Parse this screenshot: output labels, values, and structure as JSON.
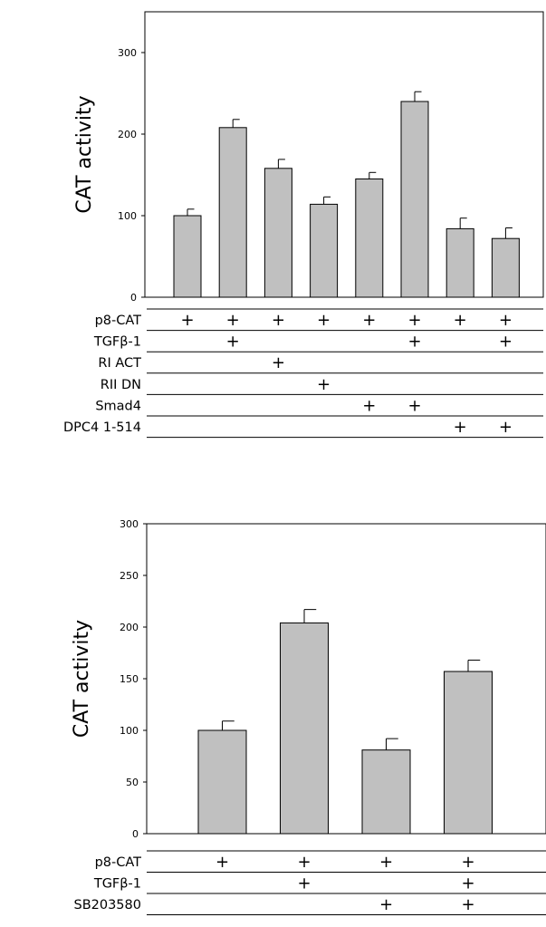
{
  "chart_data": [
    {
      "type": "bar",
      "ylabel": "CAT activity",
      "ylim": [
        0,
        350
      ],
      "yticks": [
        "0",
        "100",
        "200",
        "300"
      ],
      "values": [
        100,
        208,
        158,
        114,
        145,
        240,
        84,
        72
      ],
      "errors": [
        8,
        10,
        11,
        9,
        8,
        12,
        13,
        13
      ],
      "bar_color": "#c0c0c0",
      "table": {
        "rows": [
          {
            "label": "p8-CAT",
            "marks": [
              1,
              1,
              1,
              1,
              1,
              1,
              1,
              1
            ]
          },
          {
            "label": "TGFβ-1",
            "marks": [
              0,
              1,
              0,
              0,
              0,
              1,
              0,
              1
            ]
          },
          {
            "label": "RI ACT",
            "marks": [
              0,
              0,
              1,
              0,
              0,
              0,
              0,
              0
            ]
          },
          {
            "label": "RII DN",
            "marks": [
              0,
              0,
              0,
              1,
              0,
              0,
              0,
              0
            ]
          },
          {
            "label": "Smad4",
            "marks": [
              0,
              0,
              0,
              0,
              1,
              1,
              0,
              0
            ]
          },
          {
            "label": "DPC4 1-514",
            "marks": [
              0,
              0,
              0,
              0,
              0,
              0,
              1,
              1
            ]
          }
        ],
        "mark_symbol": "+"
      }
    },
    {
      "type": "bar",
      "ylabel": "CAT activity",
      "ylim": [
        0,
        300
      ],
      "yticks": [
        "0",
        "50",
        "100",
        "150",
        "200",
        "250",
        "300"
      ],
      "values": [
        100,
        204,
        81,
        157
      ],
      "errors": [
        9,
        13,
        11,
        11
      ],
      "bar_color": "#c0c0c0",
      "table": {
        "rows": [
          {
            "label": "p8-CAT",
            "marks": [
              1,
              1,
              1,
              1
            ]
          },
          {
            "label": "TGFβ-1",
            "marks": [
              0,
              1,
              0,
              1
            ]
          },
          {
            "label": "SB203580",
            "marks": [
              0,
              0,
              1,
              1
            ]
          }
        ],
        "mark_symbol": "+"
      }
    }
  ]
}
